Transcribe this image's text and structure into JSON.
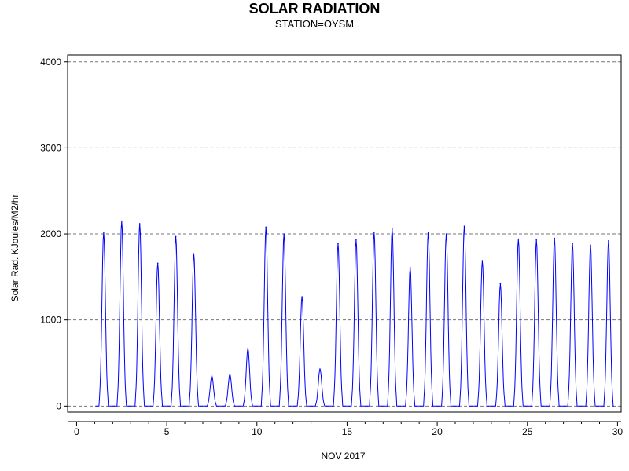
{
  "chart_data": {
    "type": "line",
    "title": "SOLAR RADIATION",
    "subtitle": "STATION=OYSM",
    "xlabel": "NOV 2017",
    "ylabel": "Solar Rad. KJoules/M2/hr",
    "xlim": [
      -0.5,
      30.2
    ],
    "ylim": [
      -70,
      4080
    ],
    "x_ticks": [
      0,
      5,
      10,
      15,
      20,
      25,
      30
    ],
    "y_ticks": [
      0,
      1000,
      2000,
      3000,
      4000
    ],
    "grid": "horizontal dashed",
    "series": [
      {
        "color": "#0000ff",
        "daily_peaks": [
          {
            "day": 1.5,
            "value": 2020
          },
          {
            "day": 2.5,
            "value": 2150
          },
          {
            "day": 3.5,
            "value": 2120
          },
          {
            "day": 4.5,
            "value": 1660
          },
          {
            "day": 5.5,
            "value": 1970
          },
          {
            "day": 6.5,
            "value": 1770
          },
          {
            "day": 7.5,
            "value": 350
          },
          {
            "day": 8.5,
            "value": 370
          },
          {
            "day": 9.5,
            "value": 670
          },
          {
            "day": 10.5,
            "value": 2080
          },
          {
            "day": 11.5,
            "value": 2000
          },
          {
            "day": 12.5,
            "value": 1270
          },
          {
            "day": 13.5,
            "value": 430
          },
          {
            "day": 14.5,
            "value": 1890
          },
          {
            "day": 15.5,
            "value": 1930
          },
          {
            "day": 16.5,
            "value": 2020
          },
          {
            "day": 17.5,
            "value": 2060
          },
          {
            "day": 18.5,
            "value": 1610
          },
          {
            "day": 19.5,
            "value": 2020
          },
          {
            "day": 20.5,
            "value": 2000
          },
          {
            "day": 21.5,
            "value": 2090
          },
          {
            "day": 22.5,
            "value": 1690
          },
          {
            "day": 23.5,
            "value": 1420
          },
          {
            "day": 24.5,
            "value": 1940
          },
          {
            "day": 25.5,
            "value": 1930
          },
          {
            "day": 26.5,
            "value": 1950
          },
          {
            "day": 27.5,
            "value": 1890
          },
          {
            "day": 28.5,
            "value": 1870
          },
          {
            "day": 29.5,
            "value": 1920
          }
        ]
      }
    ]
  }
}
